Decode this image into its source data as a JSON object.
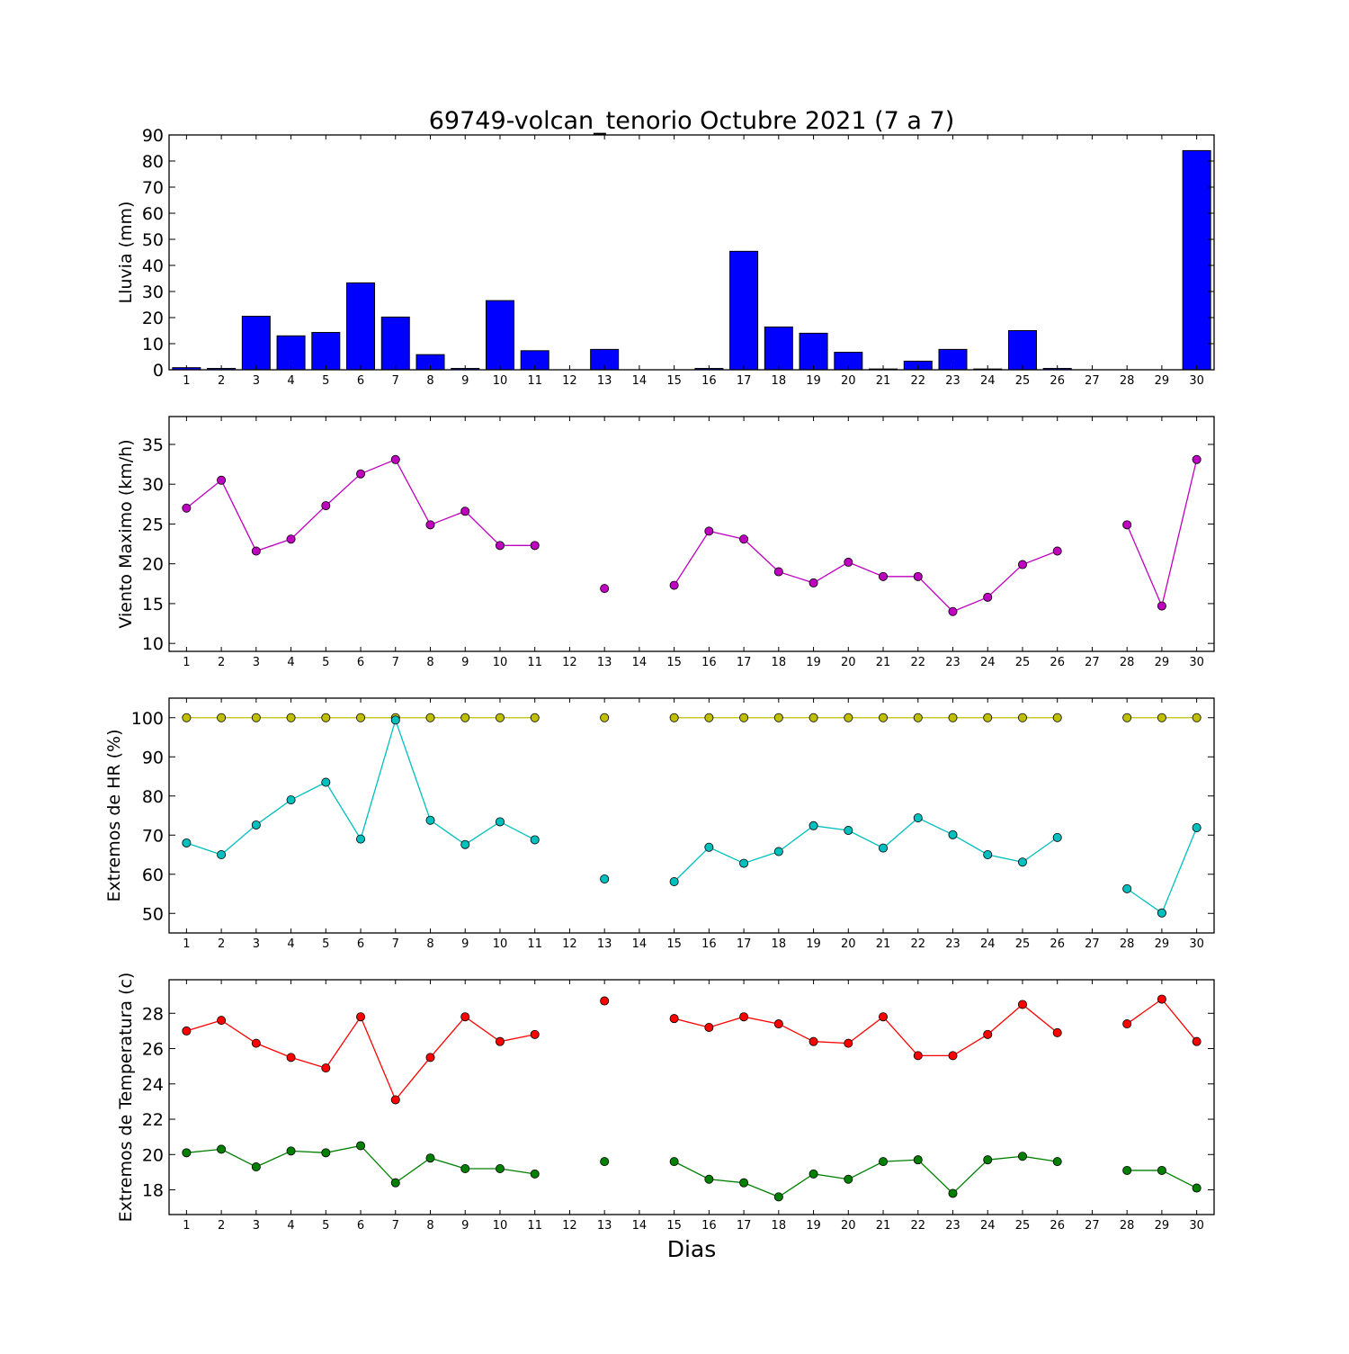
{
  "chart_data": [
    {
      "type": "bar",
      "title": "69749-volcan_tenorio Octubre 2021  (7 a 7)",
      "ylabel": "Lluvia (mm)",
      "ylim": [
        0,
        90
      ],
      "yticks": [
        0,
        10,
        20,
        30,
        40,
        50,
        60,
        70,
        80,
        90
      ],
      "categories": [
        "1",
        "2",
        "3",
        "4",
        "5",
        "6",
        "7",
        "8",
        "9",
        "10",
        "11",
        "12",
        "13",
        "14",
        "15",
        "16",
        "17",
        "18",
        "19",
        "20",
        "21",
        "22",
        "23",
        "24",
        "25",
        "26",
        "27",
        "28",
        "29",
        "30"
      ],
      "values": [
        0.8,
        0.5,
        20.5,
        13,
        14.3,
        33.3,
        20.2,
        5.8,
        0.5,
        26.5,
        7.3,
        0,
        7.8,
        0,
        0,
        0.5,
        45.4,
        16.4,
        14,
        6.7,
        0.3,
        3.3,
        7.8,
        0.3,
        15,
        0.5,
        0,
        0,
        0,
        84
      ],
      "colors": {
        "bar": "#0000ff"
      }
    },
    {
      "type": "line",
      "ylabel": "Viento Maximo (km/h)",
      "ylim": [
        9,
        38.5
      ],
      "yticks": [
        10,
        15,
        20,
        25,
        30,
        35
      ],
      "categories": [
        "1",
        "2",
        "3",
        "4",
        "5",
        "6",
        "7",
        "8",
        "9",
        "10",
        "11",
        "12",
        "13",
        "14",
        "15",
        "16",
        "17",
        "18",
        "19",
        "20",
        "21",
        "22",
        "23",
        "24",
        "25",
        "26",
        "27",
        "28",
        "29",
        "30"
      ],
      "series": [
        {
          "values": [
            27,
            30.5,
            21.6,
            23.1,
            27.3,
            31.3,
            33.1,
            24.9,
            26.6,
            22.3,
            22.3,
            null,
            16.9,
            null,
            17.3,
            24.1,
            23.1,
            19,
            17.6,
            20.2,
            18.4,
            18.4,
            14,
            15.8,
            19.9,
            21.6,
            null,
            24.9,
            14.7,
            33.1
          ],
          "color": "#bf00bf"
        }
      ]
    },
    {
      "type": "line",
      "ylabel": "Extremos de HR (%)",
      "ylim": [
        45,
        105
      ],
      "yticks": [
        50,
        60,
        70,
        80,
        90,
        100
      ],
      "categories": [
        "1",
        "2",
        "3",
        "4",
        "5",
        "6",
        "7",
        "8",
        "9",
        "10",
        "11",
        "12",
        "13",
        "14",
        "15",
        "16",
        "17",
        "18",
        "19",
        "20",
        "21",
        "22",
        "23",
        "24",
        "25",
        "26",
        "27",
        "28",
        "29",
        "30"
      ],
      "series": [
        {
          "values": [
            100,
            100,
            100,
            100,
            100,
            100,
            100,
            100,
            100,
            100,
            100,
            null,
            100,
            null,
            100,
            100,
            100,
            100,
            100,
            100,
            100,
            100,
            100,
            100,
            100,
            100,
            null,
            100,
            100,
            100
          ],
          "color": "#bfbf00"
        },
        {
          "values": [
            68,
            65,
            72.6,
            79,
            83.5,
            69,
            99.4,
            73.8,
            67.6,
            73.4,
            68.8,
            null,
            58.8,
            null,
            58.1,
            66.9,
            62.8,
            65.8,
            72.4,
            71.2,
            66.7,
            74.4,
            70.1,
            65,
            63.1,
            69.4,
            null,
            56.3,
            50.1,
            71.9
          ],
          "color": "#00bfbf"
        }
      ]
    },
    {
      "type": "line",
      "ylabel": "Extremos de Temperatura (c)",
      "xlabel": "Dias",
      "ylim": [
        16.6,
        29.9
      ],
      "yticks": [
        18,
        20,
        22,
        24,
        26,
        28
      ],
      "categories": [
        "1",
        "2",
        "3",
        "4",
        "5",
        "6",
        "7",
        "8",
        "9",
        "10",
        "11",
        "12",
        "13",
        "14",
        "15",
        "16",
        "17",
        "18",
        "19",
        "20",
        "21",
        "22",
        "23",
        "24",
        "25",
        "26",
        "27",
        "28",
        "29",
        "30"
      ],
      "series": [
        {
          "values": [
            27,
            27.6,
            26.3,
            25.5,
            24.9,
            27.8,
            23.1,
            25.5,
            27.8,
            26.4,
            26.8,
            null,
            28.7,
            null,
            27.7,
            27.2,
            27.8,
            27.4,
            26.4,
            26.3,
            27.8,
            25.6,
            25.6,
            26.8,
            28.5,
            26.9,
            null,
            27.4,
            28.8,
            26.4
          ],
          "color": "#ff0000"
        },
        {
          "values": [
            20.1,
            20.3,
            19.3,
            20.2,
            20.1,
            20.5,
            18.4,
            19.8,
            19.2,
            19.2,
            18.9,
            null,
            19.6,
            null,
            19.6,
            18.6,
            18.4,
            17.6,
            18.9,
            18.6,
            19.6,
            19.7,
            17.8,
            19.7,
            19.9,
            19.6,
            null,
            19.1,
            19.1,
            18.1
          ],
          "color": "#008000"
        }
      ]
    }
  ]
}
